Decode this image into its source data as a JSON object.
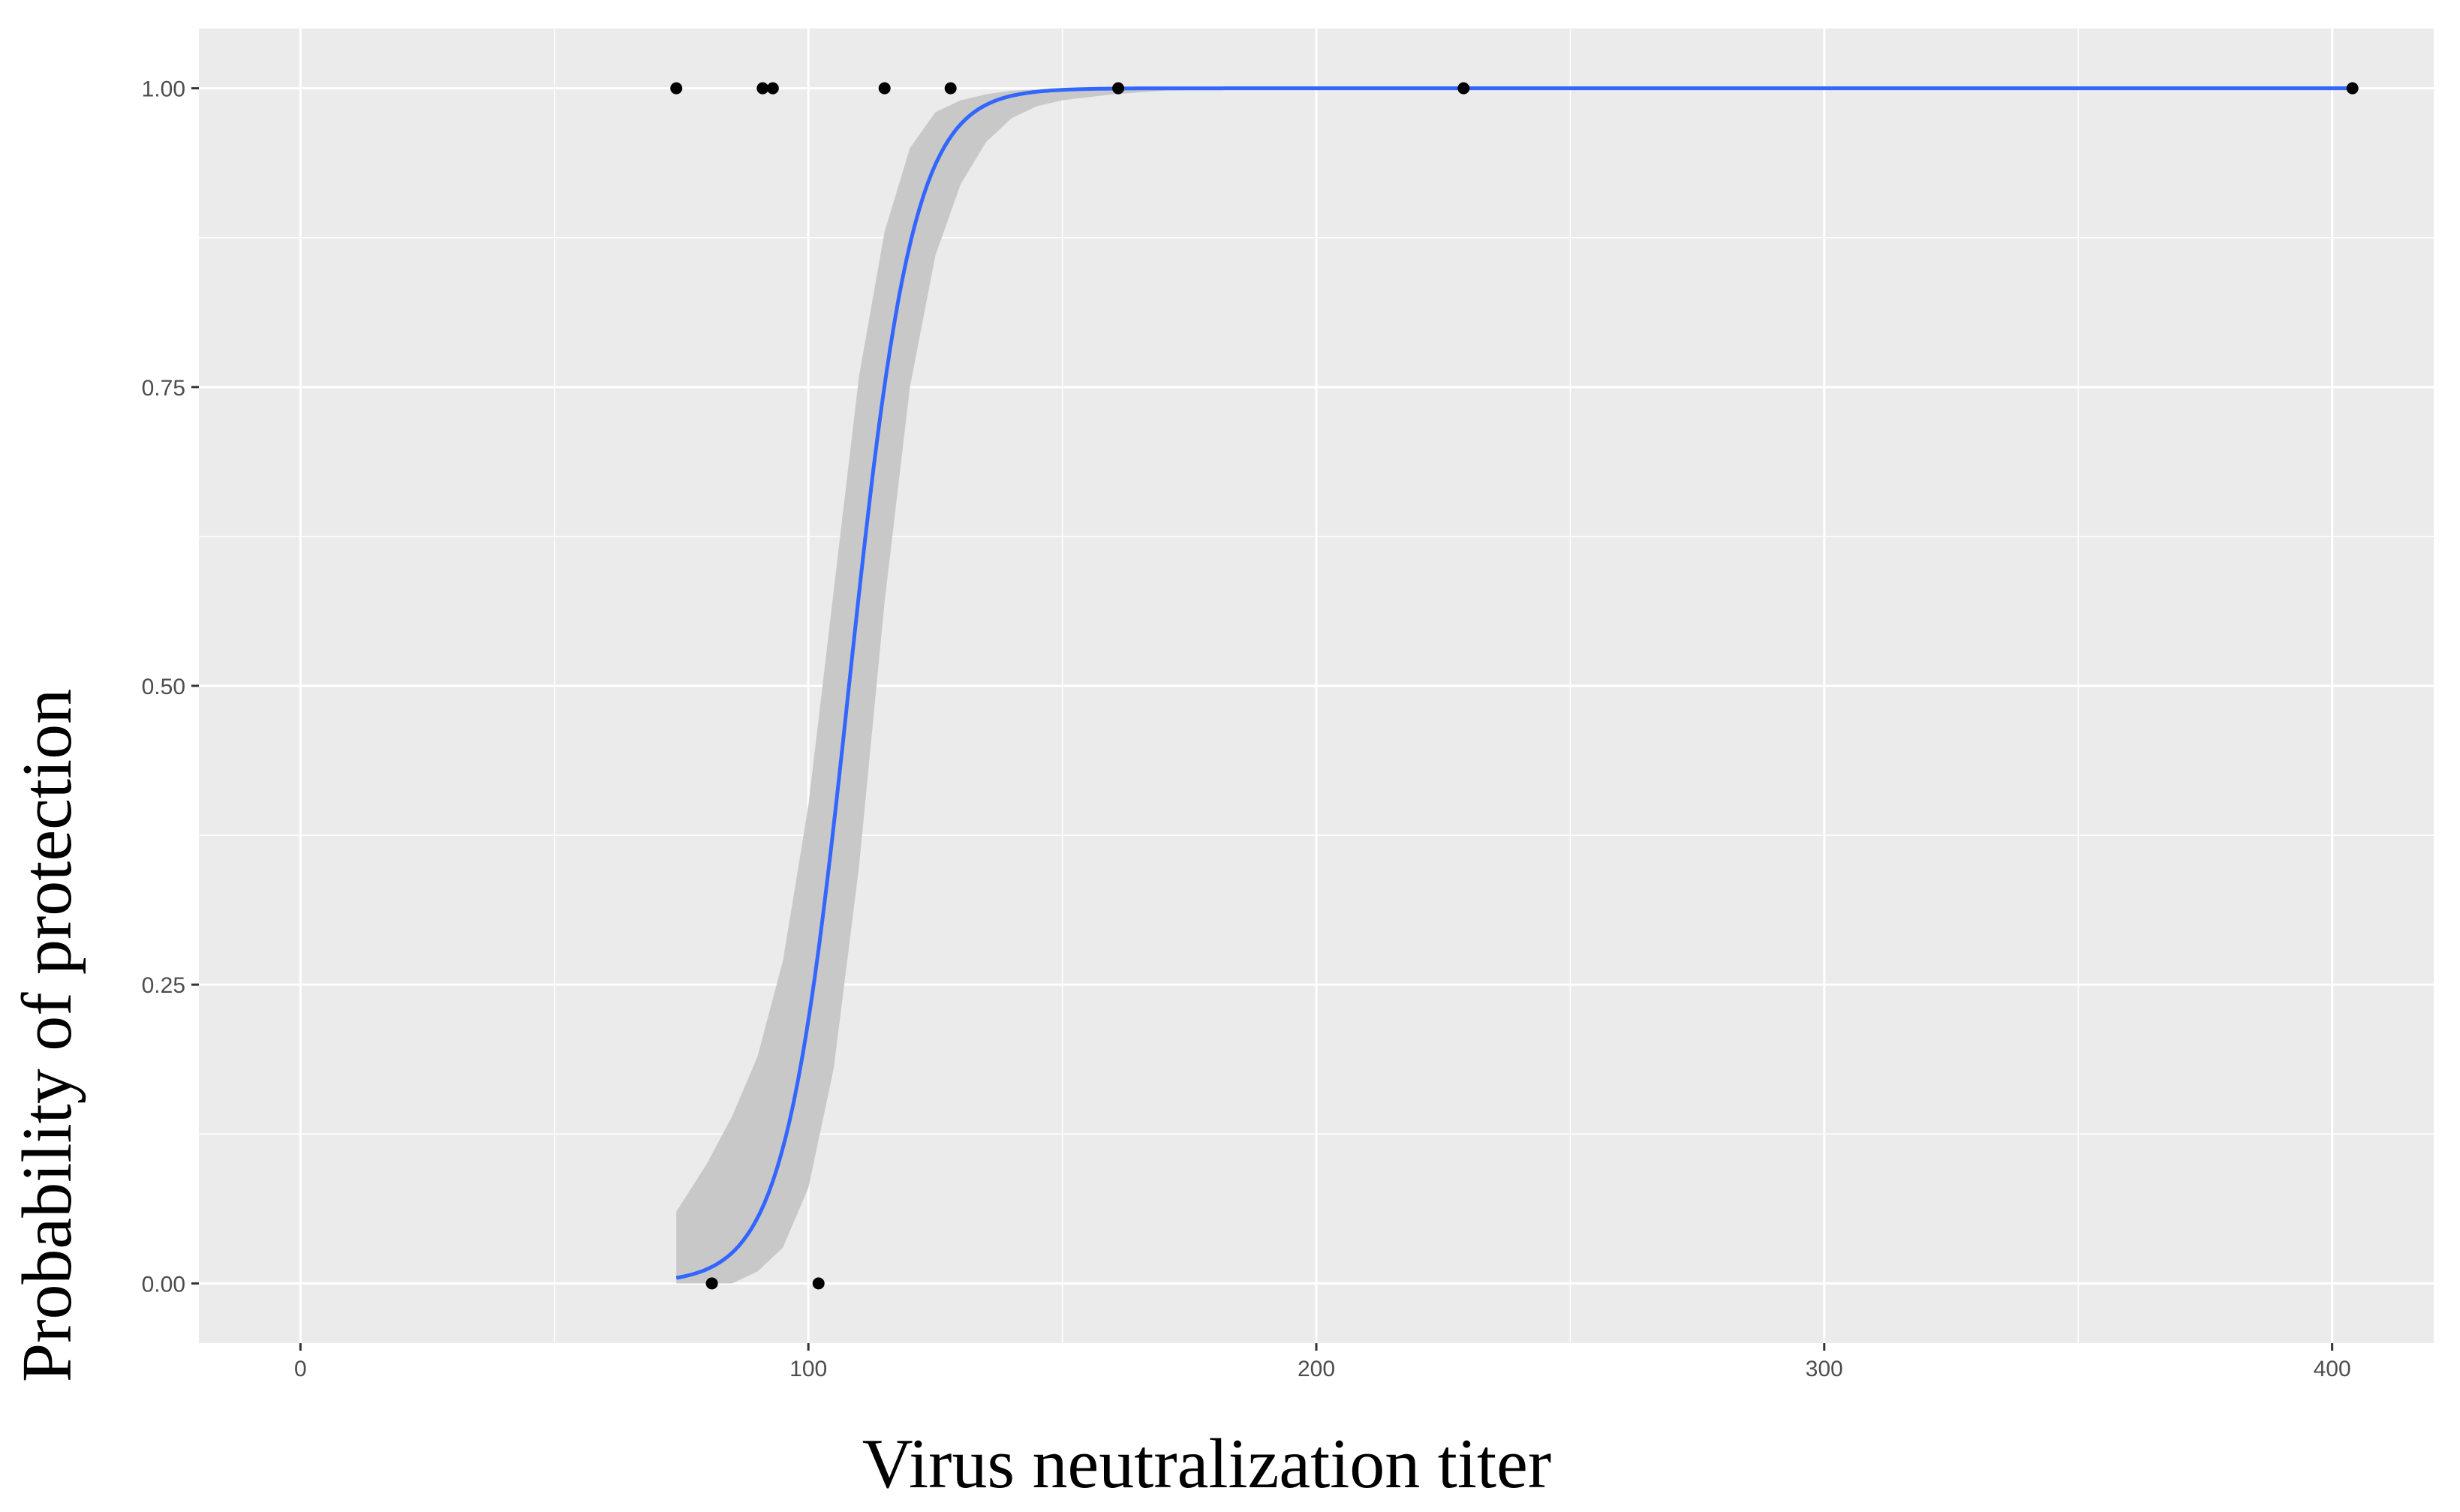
{
  "chart_data": {
    "type": "scatter",
    "title": "",
    "xlabel": "Virus neutralization titer",
    "ylabel": "Probability of protection",
    "xlim": [
      -20,
      420
    ],
    "ylim": [
      -0.05,
      1.05
    ],
    "x_ticks": [
      0,
      100,
      200,
      300,
      400
    ],
    "x_tick_labels": [
      "0",
      "100",
      "200",
      "300",
      "400"
    ],
    "y_ticks": [
      0,
      0.25,
      0.5,
      0.75,
      1
    ],
    "y_tick_labels": [
      "0.00",
      "0.25",
      "0.50",
      "0.75",
      "1.00"
    ],
    "grid": true,
    "legend": "none",
    "points": {
      "x": [
        74,
        81,
        91,
        93,
        102,
        115,
        128,
        161,
        229,
        404
      ],
      "y": [
        1,
        0,
        1,
        1,
        0,
        1,
        1,
        1,
        1,
        1
      ]
    },
    "fit": {
      "model": "logistic",
      "x_range": [
        74,
        404
      ],
      "midpoint": 108,
      "slope": 0.158
    },
    "confidence_band": {
      "x": [
        74,
        80,
        85,
        90,
        95,
        100,
        105,
        110,
        115,
        120,
        125,
        130,
        135,
        140,
        145,
        150,
        160,
        170,
        180,
        190,
        404
      ],
      "lower": [
        0.0,
        0.0,
        0.0,
        0.01,
        0.03,
        0.08,
        0.18,
        0.35,
        0.57,
        0.75,
        0.86,
        0.92,
        0.955,
        0.975,
        0.985,
        0.99,
        0.995,
        0.998,
        0.999,
        1.0,
        1.0
      ],
      "upper": [
        0.06,
        0.1,
        0.14,
        0.19,
        0.27,
        0.4,
        0.58,
        0.76,
        0.88,
        0.95,
        0.98,
        0.99,
        0.995,
        0.998,
        0.999,
        1.0,
        1.0,
        1.0,
        1.0,
        1.0,
        1.0
      ]
    },
    "colors": {
      "panel_background": "#ebebeb",
      "grid_major": "#ffffff",
      "fit_line": "#3366ff",
      "band": "#c8c8c8",
      "points": "#000000",
      "tick_label": "#4d4d4d"
    }
  }
}
